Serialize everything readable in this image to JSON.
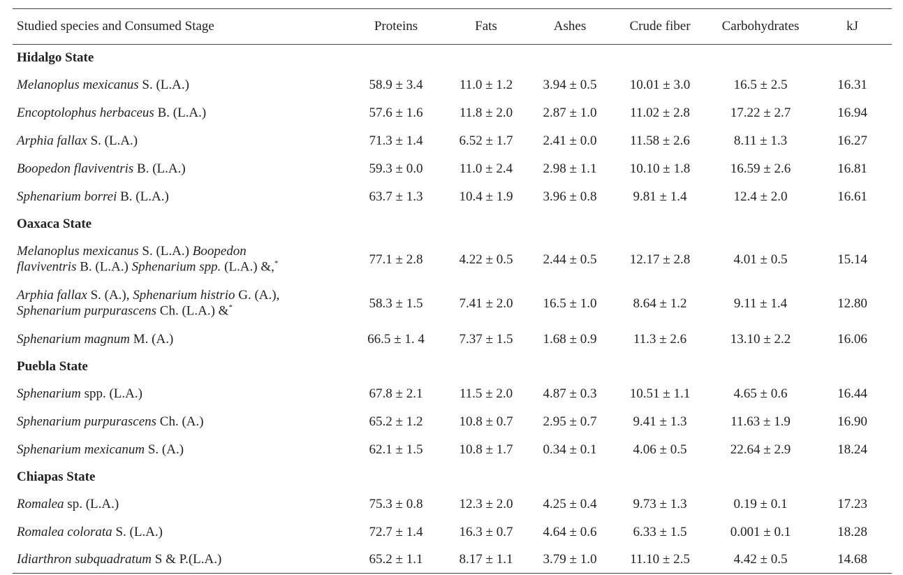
{
  "headers": [
    "Studied species and Consumed Stage",
    "Proteins",
    "Fats",
    "Ashes",
    "Crude fiber",
    "Carbohydrates",
    "kJ"
  ],
  "sections": [
    {
      "title": "Hidalgo State",
      "rows": [
        {
          "name_parts": [
            {
              "text": "Melanoplus mexicanus",
              "italic": true
            },
            {
              "text": " S. (L.A.)",
              "italic": false
            }
          ],
          "values": [
            "58.9 ± 3.4",
            "11.0 ± 1.2",
            "3.94 ± 0.5",
            "10.01 ± 3.0",
            "16.5 ± 2.5",
            "16.31"
          ]
        },
        {
          "name_parts": [
            {
              "text": "Encoptolophus herbaceus",
              "italic": true
            },
            {
              "text": " B. (L.A.)",
              "italic": false
            }
          ],
          "values": [
            "57.6 ± 1.6",
            "11.8 ± 2.0",
            "2.87 ± 1.0",
            "11.02 ± 2.8",
            "17.22 ± 2.7",
            "16.94"
          ]
        },
        {
          "name_parts": [
            {
              "text": "Arphia fallax",
              "italic": true
            },
            {
              "text": " S. (L.A.)",
              "italic": false
            }
          ],
          "values": [
            "71.3 ± 1.4",
            "6.52 ± 1.7",
            "2.41 ± 0.0",
            "11.58 ± 2.6",
            "8.11 ± 1.3",
            "16.27"
          ]
        },
        {
          "name_parts": [
            {
              "text": "Boopedon flaviventris",
              "italic": true
            },
            {
              "text": " B. (L.A.)",
              "italic": false
            }
          ],
          "values": [
            "59.3 ± 0.0",
            "11.0 ± 2.4",
            "2.98 ± 1.1",
            "10.10 ± 1.8",
            "16.59 ± 2.6",
            "16.81"
          ]
        },
        {
          "name_parts": [
            {
              "text": "Sphenarium borrei",
              "italic": true
            },
            {
              "text": " B. (L.A.)",
              "italic": false
            }
          ],
          "values": [
            "63.7 ± 1.3",
            "10.4 ± 1.9",
            "3.96 ± 0.8",
            "9.81 ± 1.4",
            "12.4 ± 2.0",
            "16.61"
          ]
        }
      ]
    },
    {
      "title": "Oaxaca State",
      "rows": [
        {
          "tall": true,
          "name_parts": [
            {
              "text": "Melanoplus mexicanus",
              "italic": true
            },
            {
              "text": " S. (L.A.) ",
              "italic": false
            },
            {
              "text": "Boopedon",
              "italic": true
            },
            {
              "br": true
            },
            {
              "text": "flaviventris",
              "italic": true
            },
            {
              "text": " B. (L.A.) ",
              "italic": false
            },
            {
              "text": "Sphenarium spp.",
              "italic": true
            },
            {
              "text": " (L.A.) &,",
              "italic": false
            },
            {
              "text": "*",
              "sup": true
            }
          ],
          "values": [
            "77.1 ± 2.8",
            "4.22 ± 0.5",
            "2.44 ± 0.5",
            "12.17 ± 2.8",
            "4.01 ± 0.5",
            "15.14"
          ]
        },
        {
          "tall": true,
          "name_parts": [
            {
              "text": "Arphia fallax",
              "italic": true
            },
            {
              "text": " S. (A.), ",
              "italic": false
            },
            {
              "text": "Sphenarium histrio",
              "italic": true
            },
            {
              "text": " G. (A.),",
              "italic": false
            },
            {
              "br": true
            },
            {
              "text": "Sphenarium purpurascens",
              "italic": true
            },
            {
              "text": " Ch. (L.A.) &",
              "italic": false
            },
            {
              "text": "*",
              "sup": true
            }
          ],
          "values": [
            "58.3 ± 1.5",
            "7.41 ± 2.0",
            "16.5 ± 1.0",
            "8.64 ± 1.2",
            "9.11 ± 1.4",
            "12.80"
          ]
        },
        {
          "name_parts": [
            {
              "text": "Sphenarium magnum",
              "italic": true
            },
            {
              "text": " M. (A.)",
              "italic": false
            }
          ],
          "values": [
            "66.5 ± 1. 4",
            "7.37 ± 1.5",
            "1.68 ± 0.9",
            "11.3 ± 2.6",
            "13.10 ± 2.2",
            "16.06"
          ]
        }
      ]
    },
    {
      "title": "Puebla State",
      "rows": [
        {
          "name_parts": [
            {
              "text": "Sphenarium",
              "italic": true
            },
            {
              "text": " spp. (L.A.)",
              "italic": false
            }
          ],
          "values": [
            "67.8 ± 2.1",
            "11.5 ± 2.0",
            "4.87 ± 0.3",
            "10.51 ± 1.1",
            "4.65 ± 0.6",
            "16.44"
          ]
        },
        {
          "name_parts": [
            {
              "text": "Sphenarium purpurascens",
              "italic": true
            },
            {
              "text": " Ch. (A.)",
              "italic": false
            }
          ],
          "values": [
            "65.2 ± 1.2",
            "10.8 ± 0.7",
            "2.95 ± 0.7",
            "9.41 ± 1.3",
            "11.63 ± 1.9",
            "16.90"
          ]
        },
        {
          "name_parts": [
            {
              "text": "Sphenarium mexicanum",
              "italic": true
            },
            {
              "text": " S. (A.)",
              "italic": false
            }
          ],
          "values": [
            "62.1 ± 1.5",
            "10.8 ± 1.7",
            "0.34 ± 0.1",
            "4.06 ± 0.5",
            "22.64 ± 2.9",
            "18.24"
          ]
        }
      ]
    },
    {
      "title": "Chiapas State",
      "rows": [
        {
          "name_parts": [
            {
              "text": "Romalea",
              "italic": true
            },
            {
              "text": " sp. (L.A.)",
              "italic": false
            }
          ],
          "values": [
            "75.3 ± 0.8",
            "12.3 ± 2.0",
            "4.25 ± 0.4",
            "9.73 ± 1.3",
            "0.19 ± 0.1",
            "17.23"
          ]
        },
        {
          "name_parts": [
            {
              "text": "Romalea colorata",
              "italic": true
            },
            {
              "text": " S. (L.A.)",
              "italic": false
            }
          ],
          "values": [
            "72.7 ± 1.4",
            "16.3 ± 0.7",
            "4.64 ± 0.6",
            "6.33 ± 1.5",
            "0.001 ± 0.1",
            "18.28"
          ]
        },
        {
          "name_parts": [
            {
              "text": "Idiarthron subquadratum",
              "italic": true
            },
            {
              "text": " S & P.(L.A.)",
              "italic": false
            }
          ],
          "values": [
            "65.2 ± 1.1",
            "8.17 ± 1.1",
            "3.79 ± 1.0",
            "11.10 ± 2.5",
            "4.42 ± 0.5",
            "14.68"
          ]
        }
      ]
    }
  ]
}
